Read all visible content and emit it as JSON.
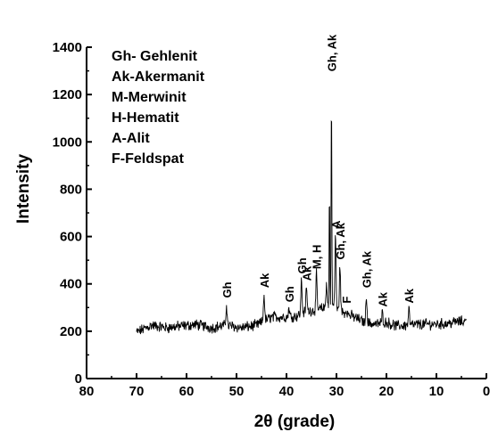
{
  "chart_data": {
    "type": "line",
    "title": "",
    "xlabel": "2θ (grade)",
    "ylabel": "Intensity",
    "xlim": [
      80,
      0
    ],
    "ylim": [
      0,
      1400
    ],
    "x_reversed": true,
    "grid": false,
    "xticks": [
      "80",
      "70",
      "60",
      "50",
      "40",
      "30",
      "20",
      "10",
      "0"
    ],
    "yticks": [
      "0",
      "200",
      "400",
      "600",
      "800",
      "1000",
      "1200",
      "1400"
    ],
    "legend": {
      "placement": "top-left",
      "entries": [
        "Gh- Gehlenit",
        "Ak-Akermanit",
        "M-Merwinit",
        "H-Hematit",
        "A-Alit",
        "F-Feldspat"
      ]
    },
    "baseline": [
      [
        70,
        195
      ],
      [
        67,
        225
      ],
      [
        64,
        215
      ],
      [
        61,
        222
      ],
      [
        58,
        228
      ],
      [
        55,
        215
      ],
      [
        52,
        225
      ],
      [
        49,
        215
      ],
      [
        46,
        225
      ],
      [
        43,
        260
      ],
      [
        40,
        260
      ],
      [
        38,
        265
      ],
      [
        36,
        285
      ],
      [
        34,
        290
      ],
      [
        32,
        300
      ],
      [
        31,
        320
      ],
      [
        30,
        290
      ],
      [
        28,
        275
      ],
      [
        26,
        255
      ],
      [
        24,
        235
      ],
      [
        22,
        230
      ],
      [
        20,
        238
      ],
      [
        18,
        222
      ],
      [
        16,
        225
      ],
      [
        14,
        228
      ],
      [
        12,
        230
      ],
      [
        10,
        230
      ],
      [
        8,
        232
      ],
      [
        6,
        240
      ],
      [
        4,
        242
      ]
    ],
    "peaks": [
      {
        "x": 52,
        "y": 318,
        "label": "Gh"
      },
      {
        "x": 44.5,
        "y": 360,
        "label": "Ak"
      },
      {
        "x": 39.5,
        "y": 300,
        "label": "Gh"
      },
      {
        "x": 37.0,
        "y": 420,
        "label": "Gh"
      },
      {
        "x": 36.0,
        "y": 390,
        "label": "Ak"
      },
      {
        "x": 34.0,
        "y": 440,
        "label": "M, H"
      },
      {
        "x": 32.0,
        "y": 410,
        "label": ""
      },
      {
        "x": 31.4,
        "y": 810,
        "label": ""
      },
      {
        "x": 31.0,
        "y": 1275,
        "label": "Gh, Ak"
      },
      {
        "x": 30.2,
        "y": 610,
        "label": "A"
      },
      {
        "x": 29.3,
        "y": 480,
        "label": "Gh, Ak"
      },
      {
        "x": 28.0,
        "y": 295,
        "label": "F"
      },
      {
        "x": 24.0,
        "y": 360,
        "label": "Gh, Ak"
      },
      {
        "x": 20.8,
        "y": 280,
        "label": "Ak"
      },
      {
        "x": 15.5,
        "y": 295,
        "label": "Ak"
      }
    ]
  }
}
